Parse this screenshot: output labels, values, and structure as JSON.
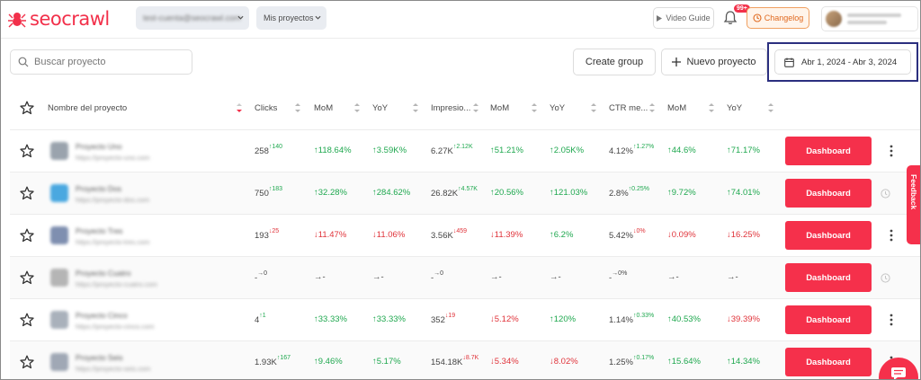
{
  "header": {
    "logo_text": "seocrawl",
    "account_select": "test-cuenta@seocrawl.com",
    "projects_select": "Mis proyectos",
    "video_guide": "Video Guide",
    "notifications_badge": "99+",
    "changelog": "Changelog",
    "brand_color": "#f2304a"
  },
  "toolbar": {
    "search_placeholder": "Buscar proyecto",
    "create_group": "Create group",
    "new_project": "Nuevo proyecto",
    "date_range": "Abr 1, 2024 - Abr 3, 2024"
  },
  "table": {
    "columns": [
      "Nombre del proyecto",
      "Clicks",
      "MoM",
      "YoY",
      "Impresio...",
      "MoM",
      "YoY",
      "CTR me...",
      "MoM",
      "YoY"
    ],
    "dashboard_label": "Dashboard",
    "rows": [
      {
        "name": "Proyecto Uno",
        "url": "https://proyecto-uno.com",
        "logo_color": "#9aa3ad",
        "clicks": "258",
        "clicks_d": "↑140",
        "clicks_dir": "up",
        "c_mom": "↑118.64%",
        "c_mom_dir": "up",
        "c_yoy": "↑3.59K%",
        "c_yoy_dir": "up",
        "impr": "6.27K",
        "impr_d": "↑2.12K",
        "impr_dir": "up",
        "i_mom": "↑51.21%",
        "i_mom_dir": "up",
        "i_yoy": "↑2.05K%",
        "i_yoy_dir": "up",
        "ctr": "4.12%",
        "ctr_d": "↑1.27%",
        "ctr_dir": "up",
        "t_mom": "↑44.6%",
        "t_mom_dir": "up",
        "t_yoy": "↑71.17%",
        "t_yoy_dir": "up",
        "action": "kebab"
      },
      {
        "name": "Proyecto Dos",
        "url": "https://proyecto-dos.com",
        "logo_color": "#4aa8e0",
        "clicks": "750",
        "clicks_d": "↑183",
        "clicks_dir": "up",
        "c_mom": "↑32.28%",
        "c_mom_dir": "up",
        "c_yoy": "↑284.62%",
        "c_yoy_dir": "up",
        "impr": "26.82K",
        "impr_d": "↑4.57K",
        "impr_dir": "up",
        "i_mom": "↑20.56%",
        "i_mom_dir": "up",
        "i_yoy": "↑121.03%",
        "i_yoy_dir": "up",
        "ctr": "2.8%",
        "ctr_d": "↑0.25%",
        "ctr_dir": "up",
        "t_mom": "↑9.72%",
        "t_mom_dir": "up",
        "t_yoy": "↑74.01%",
        "t_yoy_dir": "up",
        "action": "clock"
      },
      {
        "name": "Proyecto Tres",
        "url": "https://proyecto-tres.com",
        "logo_color": "#7f8fb0",
        "clicks": "193",
        "clicks_d": "↓25",
        "clicks_dir": "down",
        "c_mom": "↓11.47%",
        "c_mom_dir": "down",
        "c_yoy": "↓11.06%",
        "c_yoy_dir": "down",
        "impr": "3.56K",
        "impr_d": "↓459",
        "impr_dir": "down",
        "i_mom": "↓11.39%",
        "i_mom_dir": "down",
        "i_yoy": "↑6.2%",
        "i_yoy_dir": "up",
        "ctr": "5.42%",
        "ctr_d": "↓0%",
        "ctr_dir": "down",
        "t_mom": "↓0.09%",
        "t_mom_dir": "down",
        "t_yoy": "↓16.25%",
        "t_yoy_dir": "down",
        "action": "kebab"
      },
      {
        "name": "Proyecto Cuatro",
        "url": "https://proyecto-cuatro.com",
        "logo_color": "#b5b5b5",
        "clicks": "-",
        "clicks_d": "→0",
        "clicks_dir": "flat",
        "c_mom": "→-",
        "c_mom_dir": "flat",
        "c_yoy": "→-",
        "c_yoy_dir": "flat",
        "impr": "-",
        "impr_d": "→0",
        "impr_dir": "flat",
        "i_mom": "→-",
        "i_mom_dir": "flat",
        "i_yoy": "→-",
        "i_yoy_dir": "flat",
        "ctr": "-",
        "ctr_d": "→0%",
        "ctr_dir": "flat",
        "t_mom": "→-",
        "t_mom_dir": "flat",
        "t_yoy": "→-",
        "t_yoy_dir": "flat",
        "action": "clock"
      },
      {
        "name": "Proyecto Cinco",
        "url": "https://proyecto-cinco.com",
        "logo_color": "#a9b1bb",
        "clicks": "4",
        "clicks_d": "↑1",
        "clicks_dir": "up",
        "c_mom": "↑33.33%",
        "c_mom_dir": "up",
        "c_yoy": "↑33.33%",
        "c_yoy_dir": "up",
        "impr": "352",
        "impr_d": "↓19",
        "impr_dir": "down",
        "i_mom": "↓5.12%",
        "i_mom_dir": "down",
        "i_yoy": "↑120%",
        "i_yoy_dir": "up",
        "ctr": "1.14%",
        "ctr_d": "↑0.33%",
        "ctr_dir": "up",
        "t_mom": "↑40.53%",
        "t_mom_dir": "up",
        "t_yoy": "↓39.39%",
        "t_yoy_dir": "down",
        "action": "kebab"
      },
      {
        "name": "Proyecto Seis",
        "url": "https://proyecto-seis.com",
        "logo_color": "#a0a8b5",
        "clicks": "1.93K",
        "clicks_d": "↑167",
        "clicks_dir": "up",
        "c_mom": "↑9.46%",
        "c_mom_dir": "up",
        "c_yoy": "↑5.17%",
        "c_yoy_dir": "up",
        "impr": "154.18K",
        "impr_d": "↓8.7K",
        "impr_dir": "down",
        "i_mom": "↓5.34%",
        "i_mom_dir": "down",
        "i_yoy": "↓8.02%",
        "i_yoy_dir": "down",
        "ctr": "1.25%",
        "ctr_d": "↑0.17%",
        "ctr_dir": "up",
        "t_mom": "↑15.64%",
        "t_mom_dir": "up",
        "t_yoy": "↑14.34%",
        "t_yoy_dir": "up",
        "action": "kebab"
      }
    ]
  },
  "feedback_label": "Feedback"
}
